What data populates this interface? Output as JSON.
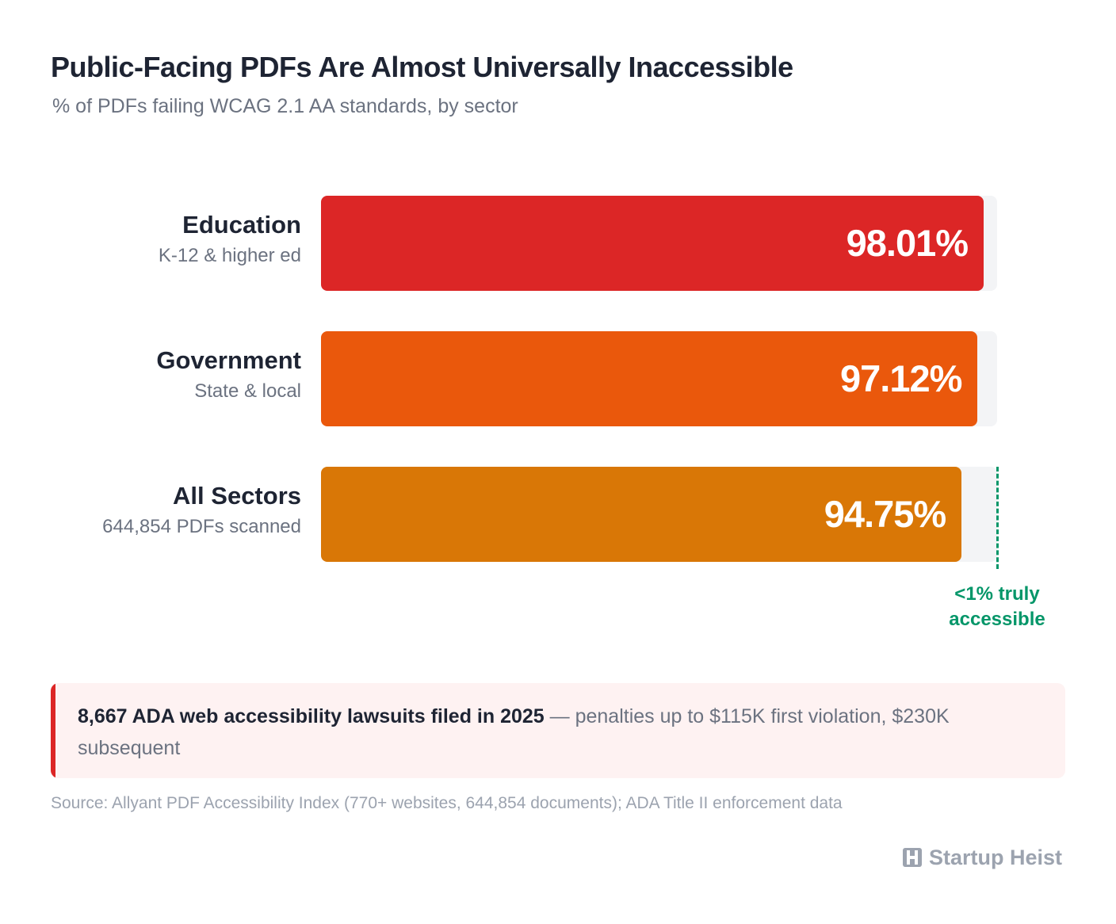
{
  "title": "Public-Facing PDFs Are Almost Universally Inaccessible",
  "subtitle": "% of PDFs failing WCAG 2.1 AA standards, by sector",
  "chart_data": {
    "type": "bar",
    "orientation": "horizontal",
    "title": "Public-Facing PDFs Are Almost Universally Inaccessible",
    "subtitle": "% of PDFs failing WCAG 2.1 AA standards, by sector",
    "xlim": [
      0,
      100
    ],
    "grid": false,
    "categories": [
      "Education",
      "Government",
      "All Sectors"
    ],
    "category_sublabels": [
      "K-12 & higher ed",
      "State & local",
      "644,854 PDFs scanned"
    ],
    "values": [
      98.01,
      97.12,
      94.75
    ],
    "value_labels": [
      "98.01%",
      "97.12%",
      "94.75%"
    ],
    "bar_colors": [
      "#dc2626",
      "#ea580c",
      "#d97706"
    ],
    "reference_line": {
      "value": 99,
      "label_line1": "<1% truly",
      "label_line2": "accessible",
      "color": "#059669"
    }
  },
  "callout": {
    "strong": "8,667 ADA web accessibility lawsuits filed in 2025",
    "rest": " — penalties up to $115K first violation, $230K subsequent",
    "accent_color": "#dc2626"
  },
  "source": "Source: Allyant PDF Accessibility Index (770+ websites, 644,854 documents); ADA Title II enforcement data",
  "brand": {
    "name": "Startup Heist",
    "icon": "building-logo-icon"
  }
}
